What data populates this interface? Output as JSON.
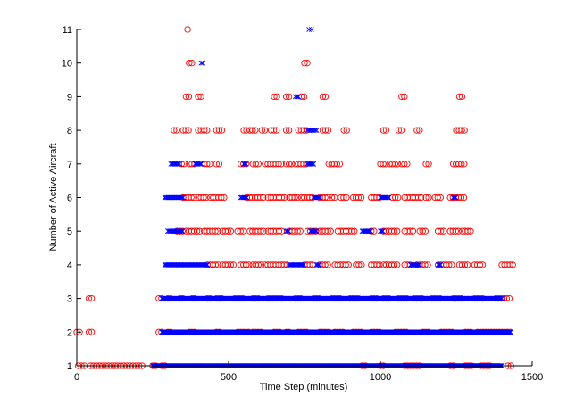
{
  "chart_data": {
    "type": "scatter",
    "title": "",
    "xlabel": "Time Step (minutes)",
    "ylabel": "Number of Active Aircraft",
    "xlim": [
      0,
      1500
    ],
    "ylim": [
      1,
      11
    ],
    "x_ticks": [
      0,
      500,
      1000,
      1500
    ],
    "y_ticks": [
      1,
      2,
      3,
      4,
      5,
      6,
      7,
      8,
      9,
      10,
      11
    ],
    "x_tick_labels": [
      "0",
      "500",
      "1000",
      "1500"
    ],
    "y_tick_labels": [
      "1",
      "2",
      "3",
      "4",
      "5",
      "6",
      "7",
      "8",
      "9",
      "10",
      "11"
    ],
    "grid": false,
    "legend": false,
    "series": [
      {
        "marker": "o",
        "color": "#ff0000",
        "segments": [
          {
            "y": 1,
            "ranges": [
              [
                5,
                30
              ],
              [
                45,
                220
              ],
              [
                250,
                260
              ],
              [
                280,
                290
              ],
              [
                940,
                950
              ],
              [
                1000,
                1010
              ],
              [
                1080,
                1090
              ],
              [
                1100,
                1130
              ],
              [
                1230,
                1240
              ],
              [
                1280,
                1300
              ],
              [
                1330,
                1360
              ],
              [
                1420,
                1430
              ]
            ],
            "step": 10
          },
          {
            "y": 2,
            "ranges": [
              [
                0,
                10
              ],
              [
                40,
                50
              ],
              [
                270,
                280
              ],
              [
                300,
                310
              ],
              [
                370,
                390
              ],
              [
                460,
                470
              ],
              [
                530,
                570
              ],
              [
                580,
                610
              ],
              [
                650,
                670
              ],
              [
                690,
                700
              ],
              [
                730,
                760
              ],
              [
                800,
                830
              ],
              [
                850,
                880
              ],
              [
                910,
                940
              ],
              [
                970,
                1000
              ],
              [
                1050,
                1090
              ],
              [
                1140,
                1160
              ],
              [
                1200,
                1240
              ],
              [
                1280,
                1300
              ],
              [
                1320,
                1430
              ]
            ],
            "step": 9
          },
          {
            "y": 3,
            "ranges": [
              [
                40,
                50
              ],
              [
                270,
                280
              ],
              [
                300,
                310
              ],
              [
                340,
                350
              ],
              [
                380,
                390
              ],
              [
                430,
                440
              ],
              [
                460,
                480
              ],
              [
                520,
                550
              ],
              [
                580,
                600
              ],
              [
                630,
                680
              ],
              [
                720,
                740
              ],
              [
                780,
                800
              ],
              [
                840,
                870
              ],
              [
                900,
                930
              ],
              [
                970,
                990
              ],
              [
                1010,
                1030
              ],
              [
                1060,
                1090
              ],
              [
                1110,
                1140
              ],
              [
                1170,
                1200
              ],
              [
                1240,
                1270
              ],
              [
                1310,
                1340
              ],
              [
                1380,
                1430
              ]
            ],
            "step": 9
          },
          {
            "y": 4,
            "ranges": [
              [
                430,
                470
              ],
              [
                480,
                520
              ],
              [
                540,
                570
              ],
              [
                580,
                610
              ],
              [
                620,
                700
              ],
              [
                750,
                780
              ],
              [
                800,
                830
              ],
              [
                850,
                900
              ],
              [
                920,
                940
              ],
              [
                970,
                1000
              ],
              [
                1010,
                1060
              ],
              [
                1080,
                1100
              ],
              [
                1120,
                1160
              ],
              [
                1190,
                1240
              ],
              [
                1260,
                1290
              ],
              [
                1310,
                1340
              ],
              [
                1400,
                1440
              ]
            ],
            "step": 9
          },
          {
            "y": 5,
            "ranges": [
              [
                330,
                350
              ],
              [
                360,
                410
              ],
              [
                420,
                470
              ],
              [
                480,
                510
              ],
              [
                530,
                550
              ],
              [
                570,
                620
              ],
              [
                630,
                680
              ],
              [
                700,
                740
              ],
              [
                760,
                790
              ],
              [
                800,
                840
              ],
              [
                860,
                920
              ],
              [
                970,
                980
              ],
              [
                1010,
                1060
              ],
              [
                1080,
                1110
              ],
              [
                1130,
                1150
              ],
              [
                1190,
                1210
              ],
              [
                1230,
                1260
              ],
              [
                1270,
                1300
              ]
            ],
            "step": 9
          },
          {
            "y": 6,
            "ranges": [
              [
                350,
                390
              ],
              [
                400,
                430
              ],
              [
                440,
                490
              ],
              [
                560,
                620
              ],
              [
                630,
                690
              ],
              [
                700,
                730
              ],
              [
                740,
                780
              ],
              [
                800,
                830
              ],
              [
                840,
                850
              ],
              [
                870,
                890
              ],
              [
                910,
                940
              ],
              [
                970,
                1000
              ],
              [
                1040,
                1060
              ],
              [
                1080,
                1140
              ],
              [
                1150,
                1160
              ],
              [
                1180,
                1200
              ],
              [
                1230,
                1280
              ]
            ],
            "step": 9
          },
          {
            "y": 7,
            "ranges": [
              [
                345,
                360
              ],
              [
                370,
                390
              ],
              [
                420,
                440
              ],
              [
                460,
                470
              ],
              [
                540,
                560
              ],
              [
                580,
                600
              ],
              [
                620,
                680
              ],
              [
                690,
                710
              ],
              [
                720,
                760
              ],
              [
                830,
                870
              ],
              [
                1000,
                1020
              ],
              [
                1030,
                1060
              ],
              [
                1070,
                1090
              ],
              [
                1150,
                1160
              ],
              [
                1240,
                1280
              ]
            ],
            "step": 9
          },
          {
            "y": 8,
            "ranges": [
              [
                320,
                330
              ],
              [
                350,
                370
              ],
              [
                400,
                410
              ],
              [
                420,
                430
              ],
              [
                460,
                480
              ],
              [
                550,
                560
              ],
              [
                570,
                590
              ],
              [
                610,
                620
              ],
              [
                640,
                660
              ],
              [
                690,
                700
              ],
              [
                730,
                760
              ],
              [
                810,
                830
              ],
              [
                880,
                890
              ],
              [
                1010,
                1020
              ],
              [
                1060,
                1070
              ],
              [
                1120,
                1130
              ],
              [
                1250,
                1280
              ]
            ],
            "step": 9
          },
          {
            "y": 9,
            "ranges": [
              [
                360,
                370
              ],
              [
                400,
                410
              ],
              [
                650,
                660
              ],
              [
                690,
                700
              ],
              [
                740,
                750
              ],
              [
                810,
                820
              ],
              [
                1070,
                1080
              ],
              [
                1260,
                1270
              ]
            ],
            "step": 9
          },
          {
            "y": 10,
            "ranges": [
              [
                370,
                380
              ],
              [
                750,
                760
              ]
            ],
            "step": 9
          },
          {
            "y": 11,
            "ranges": [
              [
                365,
                370
              ]
            ],
            "step": 9
          }
        ]
      },
      {
        "marker": "x",
        "color": "#0000ff",
        "segments": [
          {
            "y": 1,
            "ranges": [
              [
                250,
                1400
              ]
            ],
            "step": 3
          },
          {
            "y": 2,
            "ranges": [
              [
                280,
                1430
              ]
            ],
            "step": 3
          },
          {
            "y": 3,
            "ranges": [
              [
                280,
                1400
              ]
            ],
            "step": 4
          },
          {
            "y": 4,
            "ranges": [
              [
                290,
                430
              ],
              [
                700,
                750
              ],
              [
                790,
                800
              ],
              [
                1100,
                1130
              ],
              [
                1190,
                1200
              ]
            ],
            "step": 4
          },
          {
            "y": 5,
            "ranges": [
              [
                300,
                350
              ],
              [
                690,
                700
              ],
              [
                770,
                790
              ],
              [
                940,
                970
              ],
              [
                1000,
                1010
              ]
            ],
            "step": 4
          },
          {
            "y": 6,
            "ranges": [
              [
                290,
                350
              ],
              [
                540,
                560
              ],
              [
                780,
                800
              ],
              [
                1000,
                1030
              ],
              [
                1240,
                1250
              ]
            ],
            "step": 4
          },
          {
            "y": 7,
            "ranges": [
              [
                310,
                340
              ],
              [
                390,
                410
              ],
              [
                550,
                560
              ],
              [
                760,
                780
              ]
            ],
            "step": 4
          },
          {
            "y": 8,
            "ranges": [
              [
                760,
                790
              ]
            ],
            "step": 5
          },
          {
            "y": 9,
            "ranges": [
              [
                720,
                730
              ]
            ],
            "step": 5
          },
          {
            "y": 10,
            "ranges": [
              [
                410,
                415
              ]
            ],
            "step": 5
          },
          {
            "y": 11,
            "ranges": [
              [
                765,
                780
              ]
            ],
            "step": 8
          }
        ]
      }
    ]
  }
}
